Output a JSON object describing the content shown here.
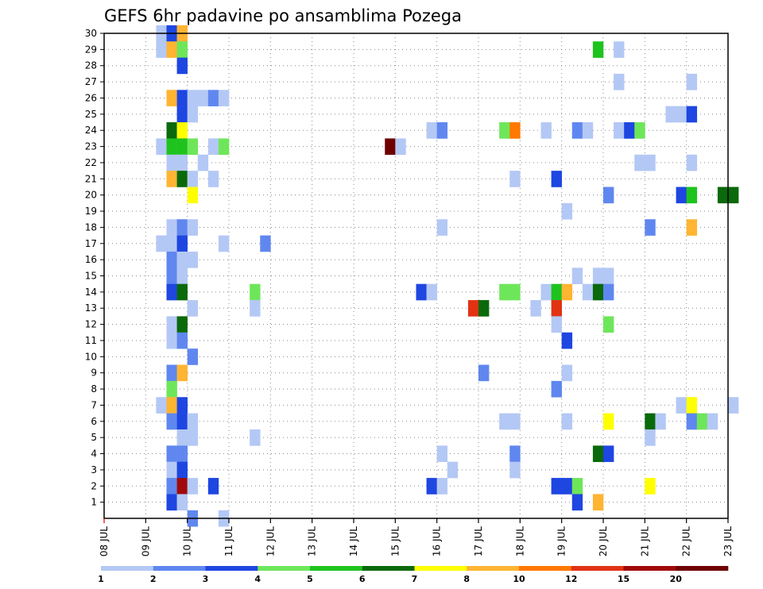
{
  "chart_data": {
    "type": "heatmap",
    "title": "GEFS 6hr padavine po ansamblima Pozega",
    "xlabel": "",
    "ylabel": "",
    "x_ticks": [
      "08 JUL",
      "09 JUL",
      "10 JUL",
      "11 JUL",
      "12 JUL",
      "13 JUL",
      "14 JUL",
      "15 JUL",
      "16 JUL",
      "17 JUL",
      "18 JUL",
      "19 JUL",
      "20 JUL",
      "21 JUL",
      "22 JUL",
      "23 JUL"
    ],
    "xlim_days": [
      8,
      23
    ],
    "y_ticks": [
      1,
      2,
      3,
      4,
      5,
      6,
      7,
      8,
      9,
      10,
      11,
      12,
      13,
      14,
      15,
      16,
      17,
      18,
      19,
      20,
      21,
      22,
      23,
      24,
      25,
      26,
      27,
      28,
      29,
      30
    ],
    "ylim": [
      0,
      30
    ],
    "grid": true,
    "legend": {
      "placement": "bottom",
      "labels": [
        "1",
        "2",
        "3",
        "4",
        "5",
        "6",
        "7",
        "8",
        "10",
        "12",
        "15",
        "20"
      ],
      "colors": [
        "#b4c8f5",
        "#5f87ef",
        "#1e46e1",
        "#6ee65a",
        "#1ec31e",
        "#0a690a",
        "#ffff00",
        "#ffb432",
        "#ff7800",
        "#e13214",
        "#a00a0a",
        "#6e0000"
      ]
    },
    "cells": [
      {
        "day": "09 JUL",
        "hour": 6,
        "member": 30,
        "class": 1
      },
      {
        "day": "09 JUL",
        "hour": 12,
        "member": 30,
        "class": 3
      },
      {
        "day": "09 JUL",
        "hour": 18,
        "member": 30,
        "class": 8
      },
      {
        "day": "09 JUL",
        "hour": 6,
        "member": 29,
        "class": 1
      },
      {
        "day": "09 JUL",
        "hour": 12,
        "member": 29,
        "class": 8
      },
      {
        "day": "09 JUL",
        "hour": 18,
        "member": 29,
        "class": 4
      },
      {
        "day": "09 JUL",
        "hour": 18,
        "member": 28,
        "class": 3
      },
      {
        "day": "09 JUL",
        "hour": 12,
        "member": 26,
        "class": 8
      },
      {
        "day": "09 JUL",
        "hour": 18,
        "member": 26,
        "class": 3
      },
      {
        "day": "10 JUL",
        "hour": 0,
        "member": 26,
        "class": 1
      },
      {
        "day": "10 JUL",
        "hour": 6,
        "member": 26,
        "class": 1
      },
      {
        "day": "10 JUL",
        "hour": 12,
        "member": 26,
        "class": 2
      },
      {
        "day": "10 JUL",
        "hour": 18,
        "member": 26,
        "class": 1
      },
      {
        "day": "09 JUL",
        "hour": 18,
        "member": 25,
        "class": 3
      },
      {
        "day": "10 JUL",
        "hour": 0,
        "member": 25,
        "class": 1
      },
      {
        "day": "09 JUL",
        "hour": 12,
        "member": 24,
        "class": 6
      },
      {
        "day": "09 JUL",
        "hour": 18,
        "member": 24,
        "class": 7
      },
      {
        "day": "09 JUL",
        "hour": 6,
        "member": 23,
        "class": 1
      },
      {
        "day": "09 JUL",
        "hour": 12,
        "member": 23,
        "class": 5
      },
      {
        "day": "09 JUL",
        "hour": 18,
        "member": 23,
        "class": 5
      },
      {
        "day": "10 JUL",
        "hour": 0,
        "member": 23,
        "class": 4
      },
      {
        "day": "10 JUL",
        "hour": 12,
        "member": 23,
        "class": 1
      },
      {
        "day": "10 JUL",
        "hour": 18,
        "member": 23,
        "class": 4
      },
      {
        "day": "09 JUL",
        "hour": 12,
        "member": 22,
        "class": 1
      },
      {
        "day": "09 JUL",
        "hour": 18,
        "member": 22,
        "class": 1
      },
      {
        "day": "10 JUL",
        "hour": 6,
        "member": 22,
        "class": 1
      },
      {
        "day": "09 JUL",
        "hour": 12,
        "member": 21,
        "class": 8
      },
      {
        "day": "09 JUL",
        "hour": 18,
        "member": 21,
        "class": 6
      },
      {
        "day": "10 JUL",
        "hour": 0,
        "member": 21,
        "class": 1
      },
      {
        "day": "10 JUL",
        "hour": 12,
        "member": 21,
        "class": 1
      },
      {
        "day": "10 JUL",
        "hour": 0,
        "member": 20,
        "class": 7
      },
      {
        "day": "10 JUL",
        "hour": 18,
        "member": 17,
        "class": 1
      },
      {
        "day": "09 JUL",
        "hour": 12,
        "member": 18,
        "class": 1
      },
      {
        "day": "09 JUL",
        "hour": 18,
        "member": 18,
        "class": 2
      },
      {
        "day": "10 JUL",
        "hour": 0,
        "member": 18,
        "class": 1
      },
      {
        "day": "09 JUL",
        "hour": 6,
        "member": 17,
        "class": 1
      },
      {
        "day": "09 JUL",
        "hour": 12,
        "member": 17,
        "class": 1
      },
      {
        "day": "09 JUL",
        "hour": 18,
        "member": 17,
        "class": 3
      },
      {
        "day": "11 JUL",
        "hour": 18,
        "member": 17,
        "class": 2
      },
      {
        "day": "09 JUL",
        "hour": 12,
        "member": 16,
        "class": 2
      },
      {
        "day": "09 JUL",
        "hour": 18,
        "member": 16,
        "class": 1
      },
      {
        "day": "10 JUL",
        "hour": 0,
        "member": 16,
        "class": 1
      },
      {
        "day": "09 JUL",
        "hour": 12,
        "member": 15,
        "class": 2
      },
      {
        "day": "09 JUL",
        "hour": 18,
        "member": 15,
        "class": 1
      },
      {
        "day": "09 JUL",
        "hour": 12,
        "member": 14,
        "class": 3
      },
      {
        "day": "09 JUL",
        "hour": 18,
        "member": 14,
        "class": 6
      },
      {
        "day": "11 JUL",
        "hour": 12,
        "member": 14,
        "class": 4
      },
      {
        "day": "10 JUL",
        "hour": 0,
        "member": 13,
        "class": 1
      },
      {
        "day": "11 JUL",
        "hour": 12,
        "member": 13,
        "class": 1
      },
      {
        "day": "09 JUL",
        "hour": 12,
        "member": 12,
        "class": 1
      },
      {
        "day": "09 JUL",
        "hour": 18,
        "member": 12,
        "class": 6
      },
      {
        "day": "09 JUL",
        "hour": 12,
        "member": 11,
        "class": 1
      },
      {
        "day": "09 JUL",
        "hour": 18,
        "member": 11,
        "class": 2
      },
      {
        "day": "10 JUL",
        "hour": 0,
        "member": 10,
        "class": 2
      },
      {
        "day": "09 JUL",
        "hour": 12,
        "member": 9,
        "class": 2
      },
      {
        "day": "09 JUL",
        "hour": 18,
        "member": 9,
        "class": 8
      },
      {
        "day": "09 JUL",
        "hour": 12,
        "member": 8,
        "class": 4
      },
      {
        "day": "09 JUL",
        "hour": 6,
        "member": 7,
        "class": 1
      },
      {
        "day": "09 JUL",
        "hour": 12,
        "member": 7,
        "class": 8
      },
      {
        "day": "09 JUL",
        "hour": 18,
        "member": 7,
        "class": 3
      },
      {
        "day": "09 JUL",
        "hour": 12,
        "member": 6,
        "class": 2
      },
      {
        "day": "09 JUL",
        "hour": 18,
        "member": 6,
        "class": 3
      },
      {
        "day": "10 JUL",
        "hour": 0,
        "member": 6,
        "class": 1
      },
      {
        "day": "09 JUL",
        "hour": 18,
        "member": 5,
        "class": 1
      },
      {
        "day": "10 JUL",
        "hour": 0,
        "member": 5,
        "class": 1
      },
      {
        "day": "11 JUL",
        "hour": 12,
        "member": 5,
        "class": 1
      },
      {
        "day": "09 JUL",
        "hour": 12,
        "member": 4,
        "class": 2
      },
      {
        "day": "09 JUL",
        "hour": 18,
        "member": 4,
        "class": 2
      },
      {
        "day": "09 JUL",
        "hour": 12,
        "member": 3,
        "class": 1
      },
      {
        "day": "09 JUL",
        "hour": 18,
        "member": 3,
        "class": 3
      },
      {
        "day": "09 JUL",
        "hour": 12,
        "member": 2,
        "class": 2
      },
      {
        "day": "09 JUL",
        "hour": 18,
        "member": 2,
        "class": 11
      },
      {
        "day": "10 JUL",
        "hour": 0,
        "member": 2,
        "class": 1
      },
      {
        "day": "10 JUL",
        "hour": 12,
        "member": 2,
        "class": 3
      },
      {
        "day": "09 JUL",
        "hour": 12,
        "member": 1,
        "class": 3
      },
      {
        "day": "09 JUL",
        "hour": 18,
        "member": 1,
        "class": 1
      },
      {
        "day": "10 JUL",
        "hour": 0,
        "member": 0,
        "class": 2
      },
      {
        "day": "10 JUL",
        "hour": 18,
        "member": 0,
        "class": 1
      },
      {
        "day": "15 JUL",
        "hour": 12,
        "member": 14,
        "class": 3
      },
      {
        "day": "15 JUL",
        "hour": 18,
        "member": 14,
        "class": 1
      },
      {
        "day": "14 JUL",
        "hour": 18,
        "member": 23,
        "class": 12
      },
      {
        "day": "15 JUL",
        "hour": 0,
        "member": 23,
        "class": 1
      },
      {
        "day": "15 JUL",
        "hour": 18,
        "member": 24,
        "class": 1
      },
      {
        "day": "16 JUL",
        "hour": 0,
        "member": 24,
        "class": 2
      },
      {
        "day": "16 JUL",
        "hour": 0,
        "member": 18,
        "class": 1
      },
      {
        "day": "16 JUL",
        "hour": 18,
        "member": 13,
        "class": 10
      },
      {
        "day": "17 JUL",
        "hour": 0,
        "member": 13,
        "class": 6
      },
      {
        "day": "17 JUL",
        "hour": 0,
        "member": 9,
        "class": 2
      },
      {
        "day": "16 JUL",
        "hour": 0,
        "member": 4,
        "class": 1
      },
      {
        "day": "16 JUL",
        "hour": 6,
        "member": 3,
        "class": 1
      },
      {
        "day": "15 JUL",
        "hour": 18,
        "member": 2,
        "class": 3
      },
      {
        "day": "16 JUL",
        "hour": 0,
        "member": 2,
        "class": 1
      },
      {
        "day": "17 JUL",
        "hour": 12,
        "member": 24,
        "class": 4
      },
      {
        "day": "17 JUL",
        "hour": 18,
        "member": 24,
        "class": 9
      },
      {
        "day": "17 JUL",
        "hour": 12,
        "member": 14,
        "class": 4
      },
      {
        "day": "17 JUL",
        "hour": 18,
        "member": 14,
        "class": 4
      },
      {
        "day": "18 JUL",
        "hour": 6,
        "member": 13,
        "class": 1
      },
      {
        "day": "17 JUL",
        "hour": 12,
        "member": 6,
        "class": 1
      },
      {
        "day": "17 JUL",
        "hour": 18,
        "member": 6,
        "class": 1
      },
      {
        "day": "17 JUL",
        "hour": 18,
        "member": 4,
        "class": 2
      },
      {
        "day": "17 JUL",
        "hour": 18,
        "member": 3,
        "class": 1
      },
      {
        "day": "17 JUL",
        "hour": 18,
        "member": 21,
        "class": 1
      },
      {
        "day": "18 JUL",
        "hour": 12,
        "member": 24,
        "class": 1
      },
      {
        "day": "18 JUL",
        "hour": 12,
        "member": 14,
        "class": 1
      },
      {
        "day": "18 JUL",
        "hour": 18,
        "member": 14,
        "class": 5
      },
      {
        "day": "19 JUL",
        "hour": 0,
        "member": 14,
        "class": 8
      },
      {
        "day": "18 JUL",
        "hour": 18,
        "member": 13,
        "class": 10
      },
      {
        "day": "18 JUL",
        "hour": 18,
        "member": 12,
        "class": 1
      },
      {
        "day": "19 JUL",
        "hour": 0,
        "member": 11,
        "class": 3
      },
      {
        "day": "18 JUL",
        "hour": 18,
        "member": 21,
        "class": 3
      },
      {
        "day": "19 JUL",
        "hour": 0,
        "member": 19,
        "class": 1
      },
      {
        "day": "19 JUL",
        "hour": 0,
        "member": 9,
        "class": 1
      },
      {
        "day": "18 JUL",
        "hour": 18,
        "member": 8,
        "class": 2
      },
      {
        "day": "19 JUL",
        "hour": 0,
        "member": 6,
        "class": 1
      },
      {
        "day": "18 JUL",
        "hour": 18,
        "member": 2,
        "class": 3
      },
      {
        "day": "19 JUL",
        "hour": 0,
        "member": 2,
        "class": 3
      },
      {
        "day": "19 JUL",
        "hour": 6,
        "member": 2,
        "class": 4
      },
      {
        "day": "19 JUL",
        "hour": 6,
        "member": 1,
        "class": 3
      },
      {
        "day": "19 JUL",
        "hour": 6,
        "member": 24,
        "class": 2
      },
      {
        "day": "19 JUL",
        "hour": 12,
        "member": 24,
        "class": 1
      },
      {
        "day": "19 JUL",
        "hour": 6,
        "member": 15,
        "class": 1
      },
      {
        "day": "19 JUL",
        "hour": 18,
        "member": 15,
        "class": 1
      },
      {
        "day": "20 JUL",
        "hour": 0,
        "member": 15,
        "class": 1
      },
      {
        "day": "19 JUL",
        "hour": 12,
        "member": 14,
        "class": 1
      },
      {
        "day": "19 JUL",
        "hour": 18,
        "member": 14,
        "class": 6
      },
      {
        "day": "20 JUL",
        "hour": 0,
        "member": 14,
        "class": 2
      },
      {
        "day": "20 JUL",
        "hour": 0,
        "member": 12,
        "class": 4
      },
      {
        "day": "19 JUL",
        "hour": 18,
        "member": 29,
        "class": 5
      },
      {
        "day": "20 JUL",
        "hour": 6,
        "member": 29,
        "class": 1
      },
      {
        "day": "20 JUL",
        "hour": 6,
        "member": 27,
        "class": 1
      },
      {
        "day": "20 JUL",
        "hour": 0,
        "member": 20,
        "class": 2
      },
      {
        "day": "20 JUL",
        "hour": 0,
        "member": 6,
        "class": 7
      },
      {
        "day": "19 JUL",
        "hour": 18,
        "member": 4,
        "class": 6
      },
      {
        "day": "20 JUL",
        "hour": 0,
        "member": 4,
        "class": 3
      },
      {
        "day": "19 JUL",
        "hour": 18,
        "member": 1,
        "class": 8
      },
      {
        "day": "20 JUL",
        "hour": 6,
        "member": 24,
        "class": 1
      },
      {
        "day": "20 JUL",
        "hour": 12,
        "member": 24,
        "class": 3
      },
      {
        "day": "20 JUL",
        "hour": 18,
        "member": 24,
        "class": 4
      },
      {
        "day": "20 JUL",
        "hour": 18,
        "member": 22,
        "class": 1
      },
      {
        "day": "21 JUL",
        "hour": 0,
        "member": 22,
        "class": 1
      },
      {
        "day": "21 JUL",
        "hour": 0,
        "member": 18,
        "class": 2
      },
      {
        "day": "21 JUL",
        "hour": 0,
        "member": 6,
        "class": 6
      },
      {
        "day": "21 JUL",
        "hour": 6,
        "member": 6,
        "class": 1
      },
      {
        "day": "21 JUL",
        "hour": 0,
        "member": 5,
        "class": 1
      },
      {
        "day": "21 JUL",
        "hour": 0,
        "member": 2,
        "class": 7
      },
      {
        "day": "21 JUL",
        "hour": 12,
        "member": 25,
        "class": 1
      },
      {
        "day": "21 JUL",
        "hour": 18,
        "member": 25,
        "class": 1
      },
      {
        "day": "22 JUL",
        "hour": 0,
        "member": 25,
        "class": 3
      },
      {
        "day": "22 JUL",
        "hour": 0,
        "member": 27,
        "class": 1
      },
      {
        "day": "22 JUL",
        "hour": 0,
        "member": 22,
        "class": 1
      },
      {
        "day": "21 JUL",
        "hour": 18,
        "member": 20,
        "class": 3
      },
      {
        "day": "22 JUL",
        "hour": 0,
        "member": 20,
        "class": 5
      },
      {
        "day": "22 JUL",
        "hour": 18,
        "member": 20,
        "class": 6
      },
      {
        "day": "23 JUL",
        "hour": 0,
        "member": 20,
        "class": 6
      },
      {
        "day": "22 JUL",
        "hour": 0,
        "member": 18,
        "class": 8
      },
      {
        "day": "21 JUL",
        "hour": 18,
        "member": 7,
        "class": 1
      },
      {
        "day": "22 JUL",
        "hour": 0,
        "member": 7,
        "class": 7
      },
      {
        "day": "23 JUL",
        "hour": 0,
        "member": 7,
        "class": 1
      },
      {
        "day": "22 JUL",
        "hour": 0,
        "member": 6,
        "class": 2
      },
      {
        "day": "22 JUL",
        "hour": 6,
        "member": 6,
        "class": 4
      },
      {
        "day": "22 JUL",
        "hour": 12,
        "member": 6,
        "class": 1
      }
    ]
  }
}
